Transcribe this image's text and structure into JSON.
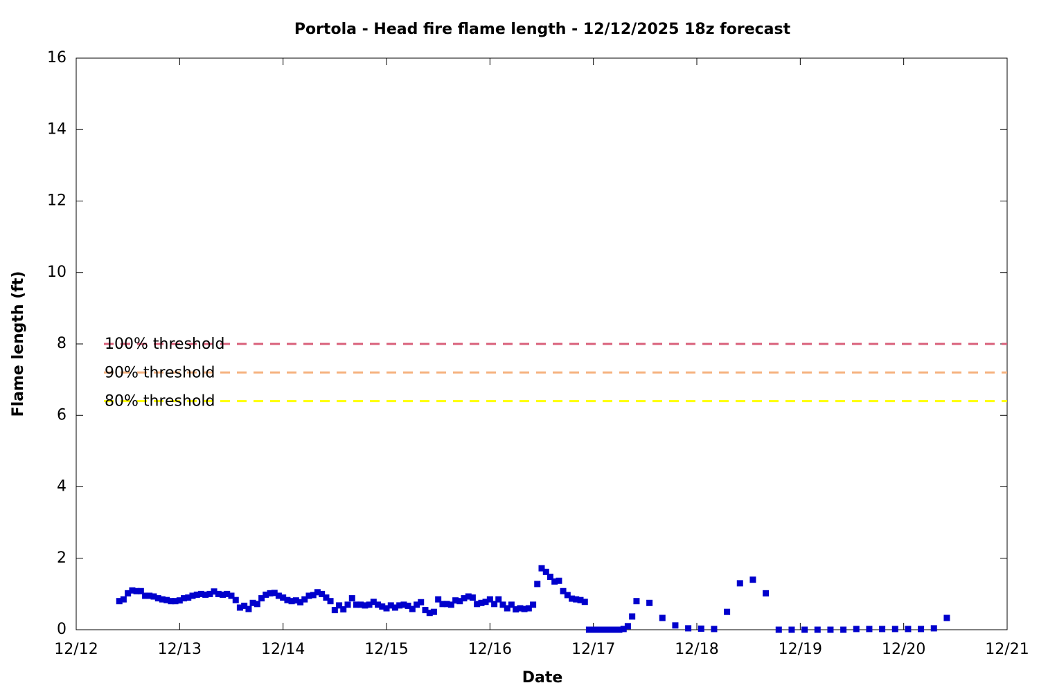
{
  "chart_data": {
    "type": "scatter",
    "title": "Portola - Head fire flame length - 12/12/2025 18z forecast",
    "x_label": "Date",
    "y_label": "Flame length (ft)",
    "color": "#0000cc",
    "x": [
      0.417,
      0.458,
      0.5,
      0.542,
      0.583,
      0.625,
      0.667,
      0.708,
      0.75,
      0.792,
      0.833,
      0.875,
      0.917,
      0.958,
      1,
      1.042,
      1.083,
      1.125,
      1.167,
      1.208,
      1.25,
      1.292,
      1.333,
      1.375,
      1.417,
      1.458,
      1.5,
      1.542,
      1.583,
      1.625,
      1.667,
      1.708,
      1.75,
      1.792,
      1.833,
      1.875,
      1.917,
      1.958,
      2,
      2.042,
      2.083,
      2.125,
      2.167,
      2.208,
      2.25,
      2.292,
      2.333,
      2.375,
      2.417,
      2.458,
      2.5,
      2.542,
      2.583,
      2.625,
      2.667,
      2.708,
      2.75,
      2.792,
      2.833,
      2.875,
      2.917,
      2.958,
      3,
      3.042,
      3.083,
      3.125,
      3.167,
      3.208,
      3.25,
      3.292,
      3.333,
      3.375,
      3.417,
      3.458,
      3.5,
      3.542,
      3.583,
      3.625,
      3.667,
      3.708,
      3.75,
      3.792,
      3.833,
      3.875,
      3.917,
      3.958,
      4,
      4.042,
      4.083,
      4.125,
      4.167,
      4.208,
      4.25,
      4.292,
      4.333,
      4.375,
      4.417,
      4.458,
      4.5,
      4.542,
      4.583,
      4.625,
      4.667,
      4.708,
      4.75,
      4.792,
      4.833,
      4.875,
      4.917,
      4.958,
      5,
      5.042,
      5.083,
      5.125,
      5.167,
      5.208,
      5.25,
      5.292,
      5.333,
      5.375,
      5.417,
      5.542,
      5.667,
      5.792,
      5.917,
      6.042,
      6.167,
      6.292,
      6.417,
      6.542,
      6.667,
      6.792,
      6.917,
      7.042,
      7.167,
      7.292,
      7.417,
      7.542,
      7.667,
      7.792,
      7.917,
      8.042,
      8.167,
      8.292,
      8.417
    ],
    "values": [
      0.8,
      0.85,
      1.02,
      1.1,
      1.08,
      1.08,
      0.95,
      0.95,
      0.93,
      0.88,
      0.85,
      0.83,
      0.8,
      0.8,
      0.82,
      0.88,
      0.9,
      0.95,
      0.98,
      1.0,
      0.98,
      1.0,
      1.07,
      1.0,
      0.98,
      1.0,
      0.95,
      0.83,
      0.62,
      0.67,
      0.58,
      0.75,
      0.72,
      0.88,
      0.98,
      1.02,
      1.03,
      0.95,
      0.9,
      0.83,
      0.8,
      0.82,
      0.77,
      0.85,
      0.95,
      0.97,
      1.05,
      1.0,
      0.9,
      0.8,
      0.55,
      0.68,
      0.57,
      0.7,
      0.88,
      0.7,
      0.7,
      0.68,
      0.7,
      0.78,
      0.7,
      0.65,
      0.6,
      0.68,
      0.62,
      0.68,
      0.7,
      0.67,
      0.58,
      0.7,
      0.77,
      0.55,
      0.47,
      0.5,
      0.85,
      0.72,
      0.72,
      0.7,
      0.82,
      0.8,
      0.88,
      0.93,
      0.9,
      0.72,
      0.75,
      0.78,
      0.85,
      0.72,
      0.85,
      0.7,
      0.6,
      0.7,
      0.57,
      0.6,
      0.58,
      0.6,
      0.7,
      1.28,
      1.72,
      1.62,
      1.48,
      1.35,
      1.37,
      1.08,
      0.97,
      0.87,
      0.85,
      0.83,
      0.78,
      0,
      0,
      0,
      0,
      0,
      0,
      0,
      0,
      0.02,
      0.1,
      0.37,
      0.8,
      0.75,
      0.33,
      0.12,
      0.04,
      0.03,
      0.02,
      0.5,
      1.3,
      1.4,
      1.02,
      0,
      0,
      0,
      0,
      0,
      0,
      0.02,
      0.02,
      0.02,
      0.02,
      0.02,
      0.02,
      0.04,
      0.33
    ],
    "thresholds": [
      {
        "label": "100% threshold",
        "value": 8,
        "color": "#d9607a"
      },
      {
        "label": "90% threshold",
        "value": 7.2,
        "color": "#f5b27f"
      },
      {
        "label": "80% threshold",
        "value": 6.4,
        "color": "#ffff00"
      }
    ],
    "xlim": [
      0,
      9
    ],
    "xticks": [
      {
        "value": 0,
        "label": "12/12"
      },
      {
        "value": 1,
        "label": "12/13"
      },
      {
        "value": 2,
        "label": "12/14"
      },
      {
        "value": 3,
        "label": "12/15"
      },
      {
        "value": 4,
        "label": "12/16"
      },
      {
        "value": 5,
        "label": "12/17"
      },
      {
        "value": 6,
        "label": "12/18"
      },
      {
        "value": 7,
        "label": "12/19"
      },
      {
        "value": 8,
        "label": "12/20"
      },
      {
        "value": 9,
        "label": "12/21"
      }
    ],
    "ylim": [
      0,
      16
    ],
    "yticks": [
      0,
      2,
      4,
      6,
      8,
      10,
      12,
      14,
      16
    ]
  }
}
